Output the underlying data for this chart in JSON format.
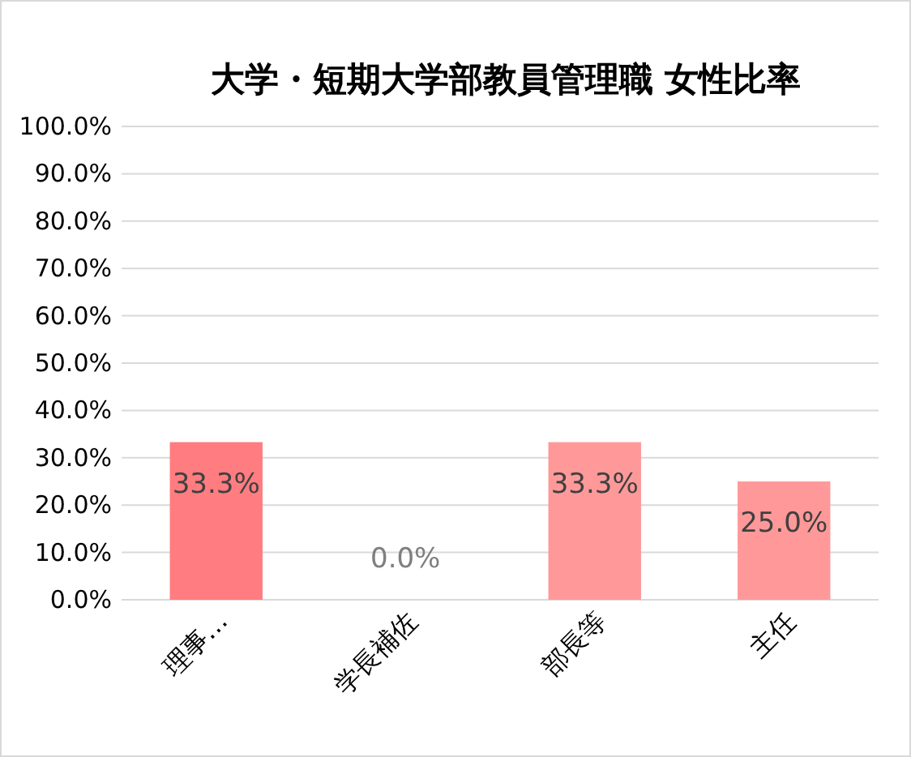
{
  "chart_data": {
    "type": "bar",
    "title": "大学・短期大学部教員管理職 女性比率",
    "categories": [
      "理事…",
      "学長補佐",
      "部長等",
      "主任"
    ],
    "values": [
      33.3,
      0,
      33.3,
      25
    ],
    "colors": [
      "#ff7c80",
      "#ff9999",
      "#ff9999",
      "#ff9999"
    ],
    "value_labels": [
      "33.3%",
      "0.0%",
      "33.3%",
      "25.0%"
    ],
    "ylim": [
      0,
      100
    ],
    "yticks": [
      {
        "value": 0,
        "label": "0.0%"
      },
      {
        "value": 10,
        "label": "10.0%"
      },
      {
        "value": 20,
        "label": "20.0%"
      },
      {
        "value": 30,
        "label": "30.0%"
      },
      {
        "value": 40,
        "label": "40.0%"
      },
      {
        "value": 50,
        "label": "50.0%"
      },
      {
        "value": 60,
        "label": "60.0%"
      },
      {
        "value": 70,
        "label": "70.0%"
      },
      {
        "value": 80,
        "label": "80.0%"
      },
      {
        "value": 90,
        "label": "90.0%"
      },
      {
        "value": 100,
        "label": "100.0%"
      }
    ],
    "grid": "y"
  }
}
